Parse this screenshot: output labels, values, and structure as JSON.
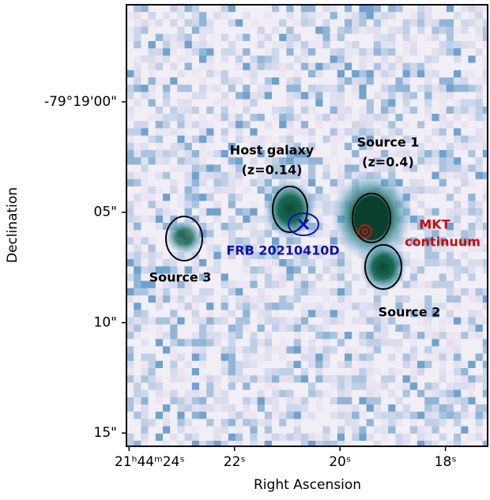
{
  "chart_data": {
    "type": "image",
    "xlabel": "Right Ascension",
    "ylabel": "Declination",
    "xlim": [
      24.05,
      17.2
    ],
    "ylim": [
      15.6,
      -4.4
    ],
    "xticks": [
      {
        "value": 24,
        "label": "21ʰ44ᵐ24ˢ"
      },
      {
        "value": 22,
        "label": "22ˢ"
      },
      {
        "value": 20,
        "label": "20ˢ"
      },
      {
        "value": 18,
        "label": "18ˢ"
      }
    ],
    "yticks": [
      {
        "value": 0,
        "label": "-79°19'00\""
      },
      {
        "value": 5,
        "label": "05\""
      },
      {
        "value": 10,
        "label": "10\""
      },
      {
        "value": 15,
        "label": "15\""
      }
    ],
    "annotations": [
      "Host galaxy",
      "(z=0.14)",
      "Source 1",
      "(z=0.4)",
      "MKT",
      "continuum",
      "FRB 20210410D",
      "Source 3",
      "Source 2"
    ]
  }
}
